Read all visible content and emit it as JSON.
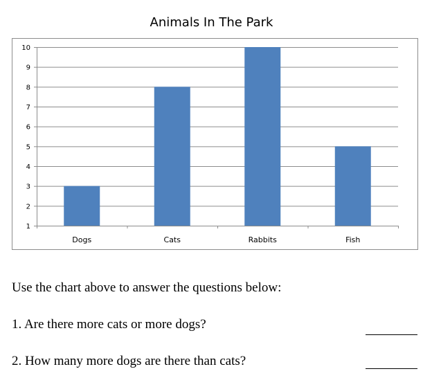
{
  "chart_data": {
    "type": "bar",
    "title": "Animals In The Park",
    "categories": [
      "Dogs",
      "Cats",
      "Rabbits",
      "Fish"
    ],
    "values": [
      3,
      8,
      10,
      5
    ],
    "xlabel": "",
    "ylabel": "",
    "ylim": [
      1,
      10
    ],
    "yticks": [
      1,
      2,
      3,
      4,
      5,
      6,
      7,
      8,
      9,
      10
    ],
    "grid": true,
    "legend": "none",
    "bar_color": "#4f81bd"
  },
  "worksheet": {
    "instructions": "Use the chart above to answer the questions below:",
    "questions": [
      "1. Are there more cats or more dogs?",
      "2. How many more dogs are there than cats?"
    ]
  }
}
